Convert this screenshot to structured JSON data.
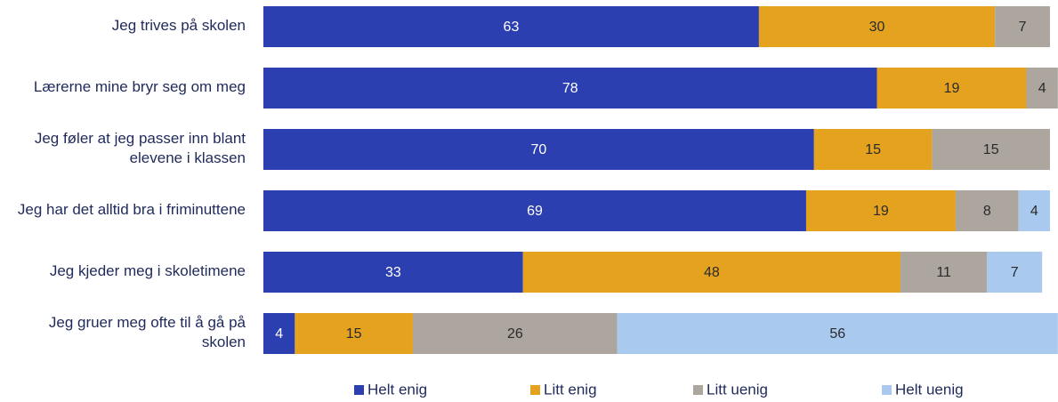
{
  "chart_data": {
    "type": "stacked-bar-horizontal",
    "categories": [
      "Jeg trives på skolen",
      "Lærerne mine bryr seg om meg",
      "Jeg føler at jeg passer inn blant elevene i klassen",
      "Jeg har det alltid bra i friminuttene",
      "Jeg kjeder meg i skoletimene",
      "Jeg gruer meg ofte til å gå på skolen"
    ],
    "series": [
      {
        "name": "Helt enig",
        "color": "#2b3fb0",
        "values": [
          63,
          78,
          70,
          69,
          33,
          4
        ]
      },
      {
        "name": "Litt enig",
        "color": "#e4a21f",
        "values": [
          30,
          19,
          15,
          19,
          48,
          15
        ]
      },
      {
        "name": "Litt uenig",
        "color": "#aca69f",
        "values": [
          7,
          4,
          15,
          8,
          11,
          26
        ]
      },
      {
        "name": "Helt uenig",
        "color": "#a9c9ee",
        "values": [
          null,
          null,
          null,
          4,
          7,
          56
        ]
      }
    ],
    "xlim": [
      0,
      100
    ],
    "legend": "bottom"
  }
}
